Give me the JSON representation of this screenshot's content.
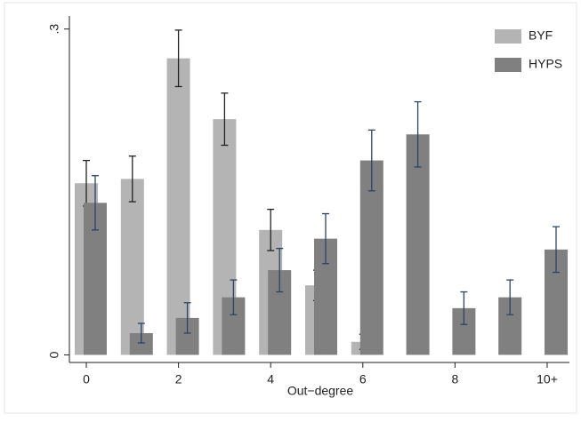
{
  "chart_data": {
    "type": "bar",
    "x_label": "Out−degree",
    "categories": [
      "0",
      null,
      "2",
      null,
      "4",
      null,
      "6",
      null,
      "8",
      null,
      "10+"
    ],
    "series": [
      {
        "name": "BYF",
        "color": "#b4b4b4",
        "error_color": "#222222",
        "values": [
          0.158,
          0.162,
          0.273,
          0.217,
          0.115,
          0.064,
          0.012,
          null,
          null,
          null,
          null
        ],
        "errors": [
          0.021,
          0.021,
          0.026,
          0.024,
          0.019,
          0.014,
          0.007,
          null,
          null,
          null,
          null
        ]
      },
      {
        "name": "HYPS",
        "color": "#808080",
        "error_color": "#2c4466",
        "values": [
          0.14,
          0.02,
          0.034,
          0.053,
          0.078,
          0.107,
          0.179,
          0.203,
          0.043,
          0.053,
          0.097
        ],
        "errors": [
          0.025,
          0.009,
          0.014,
          0.016,
          0.02,
          0.023,
          0.028,
          0.03,
          0.015,
          0.016,
          0.021
        ]
      }
    ],
    "ylim": [
      -0.007,
      0.312
    ],
    "yticks": [
      0,
      {
        "value": 0.3,
        "label": ".3"
      }
    ],
    "legend": "top-right"
  }
}
